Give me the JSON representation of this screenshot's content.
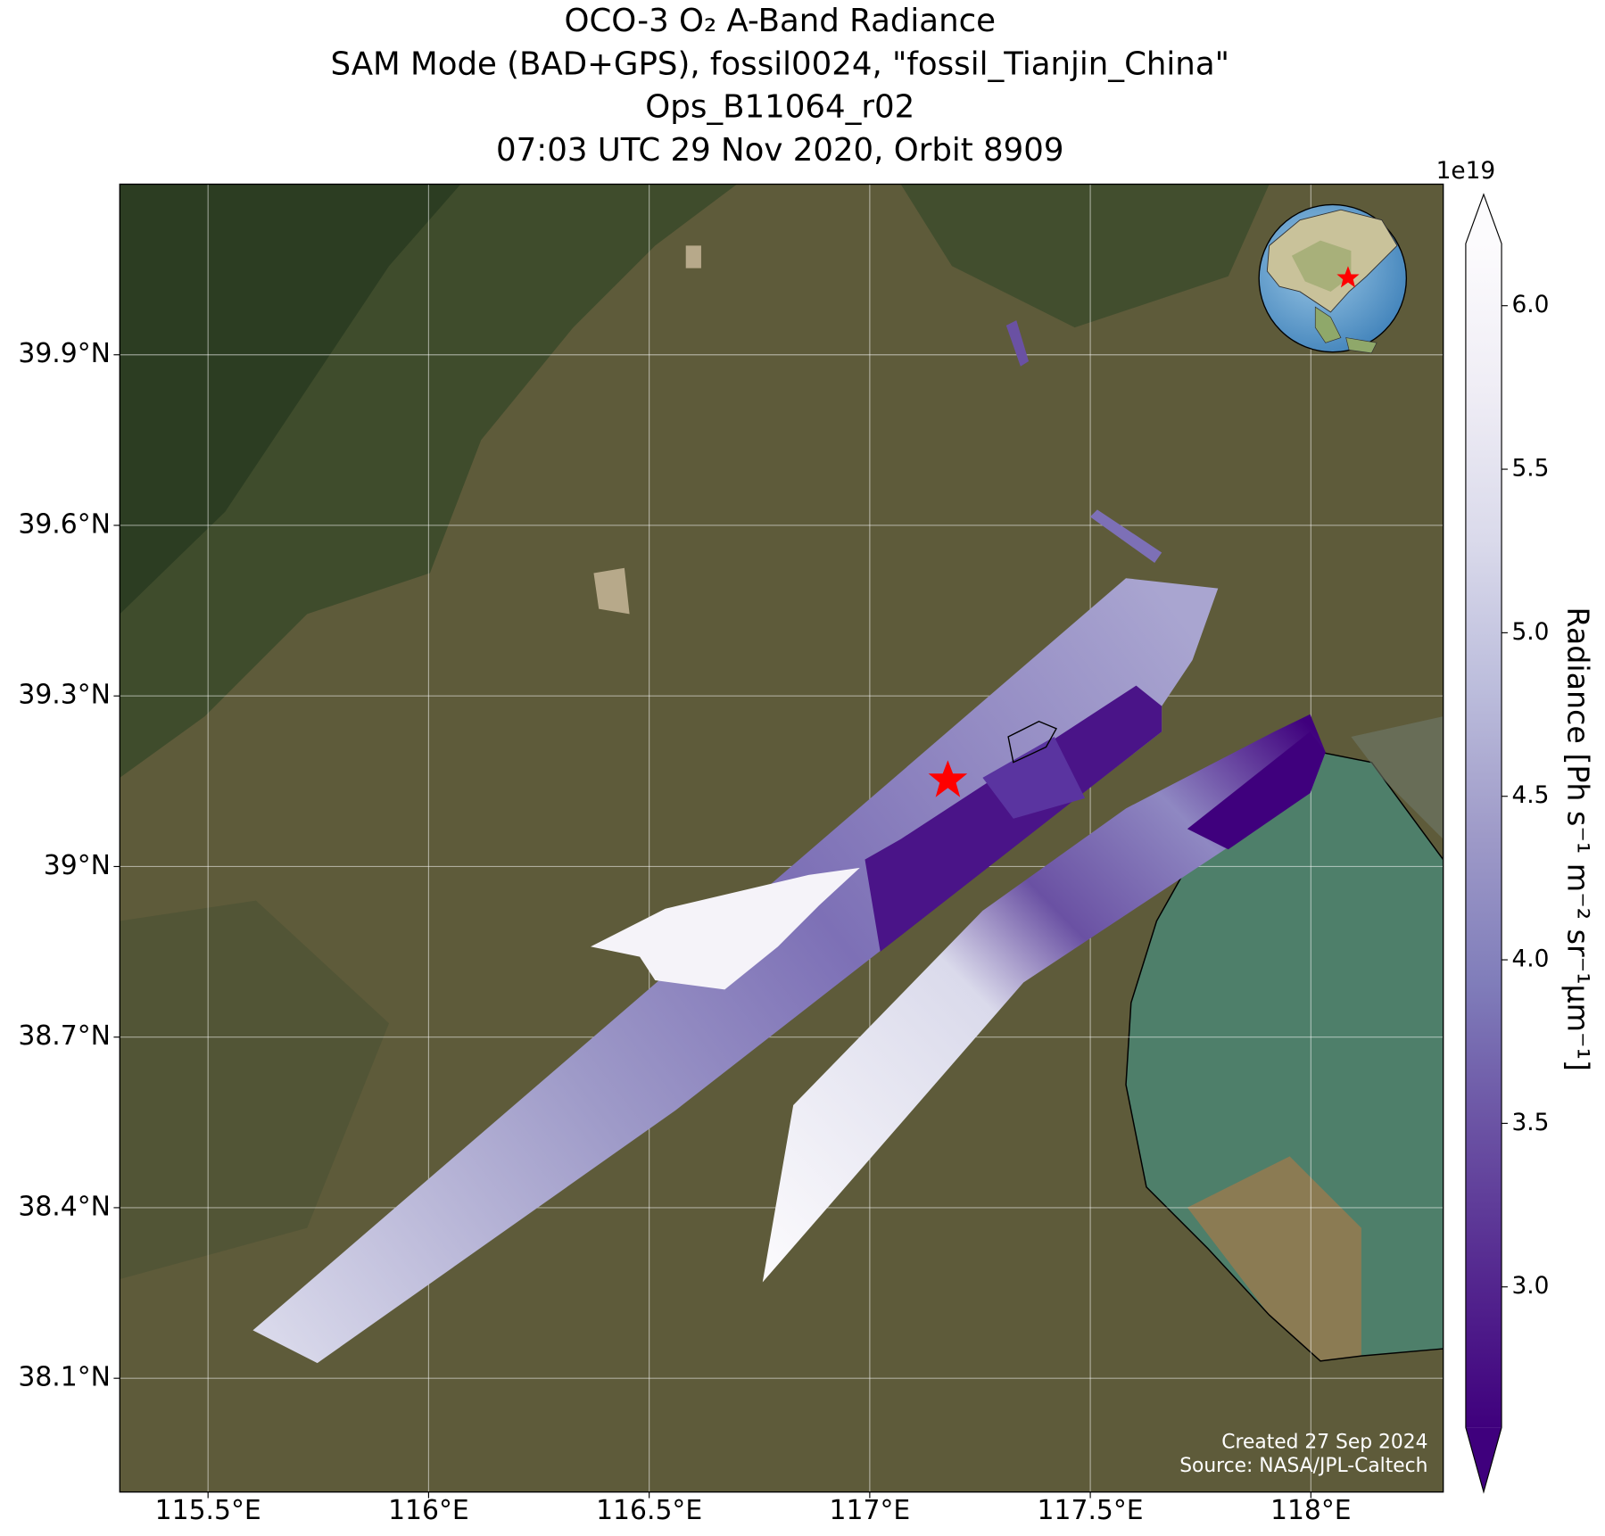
{
  "title": [
    "OCO-3 O₂ A-Band Radiance",
    "SAM Mode (BAD+GPS), fossil0024, \"fossil_Tianjin_China\"",
    "Ops_B11064_r02",
    "07:03 UTC 29 Nov 2020, Orbit 8909"
  ],
  "map": {
    "lon_range": [
      115.3,
      118.3
    ],
    "lat_range": [
      37.9,
      40.2
    ],
    "lon_ticks": [
      {
        "value": 115.5,
        "label": "115.5°E"
      },
      {
        "value": 116,
        "label": "116°E"
      },
      {
        "value": 116.5,
        "label": "116.5°E"
      },
      {
        "value": 117,
        "label": "117°E"
      },
      {
        "value": 117.5,
        "label": "117.5°E"
      },
      {
        "value": 118,
        "label": "118°E"
      }
    ],
    "lat_ticks": [
      {
        "value": 39.9,
        "label": "39.9°N"
      },
      {
        "value": 39.6,
        "label": "39.6°N"
      },
      {
        "value": 39.3,
        "label": "39.3°N"
      },
      {
        "value": 39,
        "label": "39°N"
      },
      {
        "value": 38.7,
        "label": "38.7°N"
      },
      {
        "value": 38.4,
        "label": "38.4°N"
      },
      {
        "value": 38.1,
        "label": "38.1°N"
      }
    ],
    "grid": true
  },
  "colorbar": {
    "label": "Radiance [Ph s⁻¹ m⁻² sr⁻¹μm⁻¹]",
    "multiplier": "1e19",
    "range": [
      2.57,
      6.19
    ],
    "ticks": [
      {
        "value": 3,
        "label": "3.0"
      },
      {
        "value": 3.5,
        "label": "3.5"
      },
      {
        "value": 4,
        "label": "4.0"
      },
      {
        "value": 4.5,
        "label": "4.5"
      },
      {
        "value": 5,
        "label": "5.0"
      },
      {
        "value": 5.5,
        "label": "5.5"
      },
      {
        "value": 6,
        "label": "6.0"
      }
    ],
    "colors": [
      "#3f007d",
      "#54278f",
      "#6a51a3",
      "#807dba",
      "#9e9ac8",
      "#bcbddc",
      "#dadaeb",
      "#efedf5",
      "#fcfbfd"
    ]
  },
  "credits": [
    "Created 27 Sep 2024",
    "Source: NASA/JPL-Caltech"
  ]
}
